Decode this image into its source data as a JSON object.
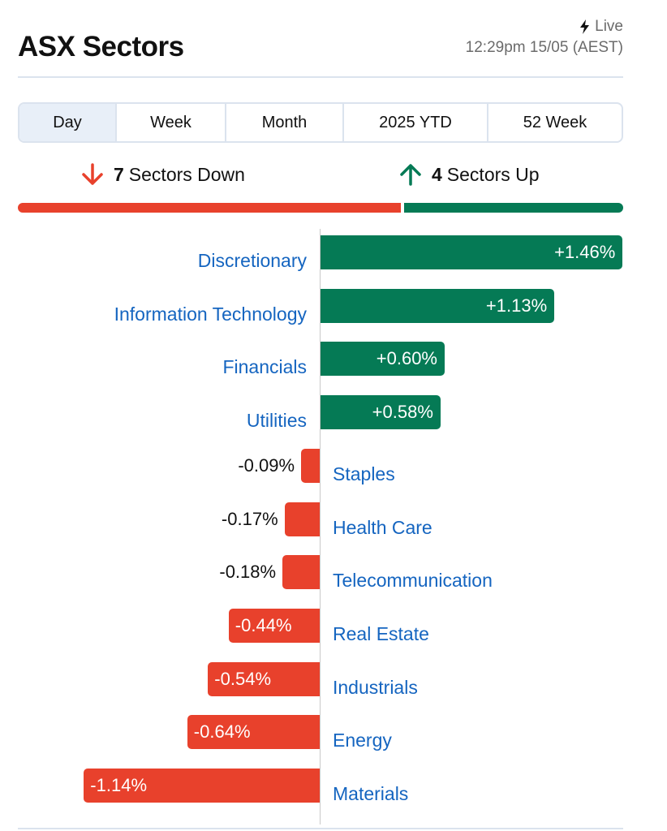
{
  "header": {
    "title": "ASX Sectors",
    "live_label": "Live",
    "timestamp": "12:29pm 15/05 (AEST)"
  },
  "tabs": [
    {
      "label": "Day",
      "active": true
    },
    {
      "label": "Week",
      "active": false
    },
    {
      "label": "Month",
      "active": false
    },
    {
      "label": "2025 YTD",
      "active": false
    },
    {
      "label": "52 Week",
      "active": false
    }
  ],
  "summary": {
    "down_count": "7",
    "down_label": "Sectors Down",
    "up_count": "4",
    "up_label": "Sectors Up"
  },
  "colors": {
    "positive": "#057a55",
    "negative": "#e8412c",
    "link": "#1565c0"
  },
  "chart_data": {
    "type": "bar",
    "orientation": "horizontal-diverging",
    "categories": [
      "Discretionary",
      "Information Technology",
      "Financials",
      "Utilities",
      "Staples",
      "Health Care",
      "Telecommunication",
      "Real Estate",
      "Industrials",
      "Energy",
      "Materials"
    ],
    "values": [
      1.46,
      1.13,
      0.6,
      0.58,
      -0.09,
      -0.17,
      -0.18,
      -0.44,
      -0.54,
      -0.64,
      -1.14
    ],
    "labels": [
      "+1.46%",
      "+1.13%",
      "+0.60%",
      "+0.58%",
      "-0.09%",
      "-0.17%",
      "-0.18%",
      "-0.44%",
      "-0.54%",
      "-0.64%",
      "-1.14%"
    ]
  }
}
